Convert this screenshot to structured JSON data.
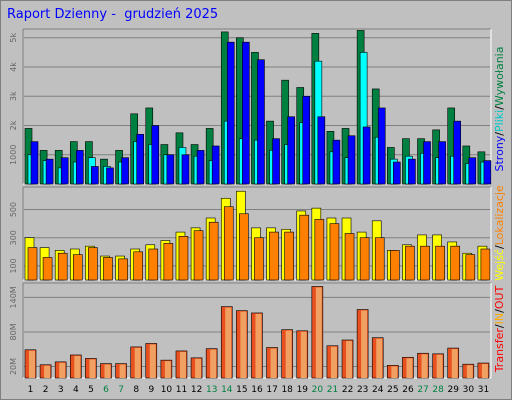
{
  "title": "Raport Dzienny -  grudzień 2025",
  "colors": {
    "hits": "#008040",
    "files": "#00ffff",
    "pages": "#0000ff",
    "visits": "#ffff00",
    "sites": "#ff8000",
    "kbytes": "#ff0000",
    "grid": "#808080",
    "panel_bg": "#c0c0c0",
    "weekday": "#000000",
    "weekend": "#008040"
  },
  "side_labels": {
    "top": [
      {
        "text": "Wywołania",
        "color": "#008040"
      },
      {
        "text": "/",
        "color": "#000000"
      },
      {
        "text": "Pliki",
        "color": "#00c8c8"
      },
      {
        "text": "/",
        "color": "#000000"
      },
      {
        "text": "Strony",
        "color": "#0000ff"
      }
    ],
    "mid": [
      {
        "text": "Lokalizacje",
        "color": "#ff8000"
      },
      {
        "text": "/",
        "color": "#000000"
      },
      {
        "text": "Wejść",
        "color": "#ffff00"
      }
    ],
    "bottom": [
      {
        "text": "OUT",
        "color": "#ff0000"
      },
      {
        "text": "/",
        "color": "#000000"
      },
      {
        "text": "IN",
        "color": "#ffaa00"
      },
      {
        "text": "/",
        "color": "#000000"
      },
      {
        "text": "Transfer",
        "color": "#ff0000"
      }
    ]
  },
  "chart_data": [
    {
      "type": "bar",
      "title": "",
      "categories": [
        "1",
        "2",
        "3",
        "4",
        "5",
        "6",
        "7",
        "8",
        "9",
        "10",
        "11",
        "12",
        "13",
        "14",
        "15",
        "16",
        "17",
        "18",
        "19",
        "20",
        "21",
        "22",
        "23",
        "24",
        "25",
        "26",
        "27",
        "28",
        "29",
        "30",
        "31"
      ],
      "weekend_days": [
        "6",
        "7",
        "13",
        "14",
        "20",
        "21",
        "27",
        "28"
      ],
      "yticks": [
        "1000",
        "2k",
        "3k",
        "4k",
        "5k"
      ],
      "ylim": [
        0,
        5300
      ],
      "series": [
        {
          "name": "Wywołania",
          "values": [
            1900,
            1150,
            1150,
            1450,
            1450,
            850,
            1150,
            2400,
            2600,
            1350,
            1750,
            1350,
            1900,
            5200,
            5000,
            4500,
            2150,
            3550,
            3300,
            5150,
            1800,
            1900,
            5250,
            3250,
            1250,
            1550,
            1550,
            1850,
            2600,
            1300,
            1100
          ]
        },
        {
          "name": "Pliki",
          "values": [
            1000,
            800,
            550,
            750,
            900,
            600,
            750,
            1450,
            1350,
            1000,
            1250,
            950,
            800,
            2150,
            1550,
            1500,
            1150,
            1350,
            2100,
            4200,
            1100,
            900,
            4500,
            1600,
            850,
            950,
            1050,
            900,
            950,
            700,
            750
          ]
        },
        {
          "name": "Strony",
          "values": [
            1450,
            850,
            900,
            1150,
            600,
            550,
            900,
            1700,
            2000,
            1000,
            1000,
            1150,
            1300,
            4850,
            4850,
            4250,
            1550,
            2300,
            3000,
            2300,
            1500,
            1650,
            1950,
            2600,
            750,
            850,
            1450,
            1450,
            2150,
            900,
            800
          ]
        }
      ]
    },
    {
      "type": "bar",
      "title": "",
      "categories": [
        "1",
        "2",
        "3",
        "4",
        "5",
        "6",
        "7",
        "8",
        "9",
        "10",
        "11",
        "12",
        "13",
        "14",
        "15",
        "16",
        "17",
        "18",
        "19",
        "20",
        "21",
        "22",
        "23",
        "24",
        "25",
        "26",
        "27",
        "28",
        "29",
        "30",
        "31"
      ],
      "yticks": [
        "100",
        "300",
        "500"
      ],
      "ylim": [
        0,
        660
      ],
      "series": [
        {
          "name": "Wejść",
          "values": [
            300,
            230,
            210,
            220,
            240,
            170,
            170,
            220,
            250,
            280,
            340,
            370,
            440,
            580,
            630,
            370,
            370,
            360,
            490,
            510,
            440,
            440,
            340,
            420,
            210,
            250,
            320,
            320,
            270,
            190,
            240
          ]
        },
        {
          "name": "Lokalizacje",
          "values": [
            230,
            160,
            190,
            180,
            230,
            160,
            150,
            200,
            220,
            260,
            310,
            350,
            410,
            520,
            470,
            300,
            340,
            340,
            460,
            430,
            400,
            330,
            300,
            300,
            210,
            240,
            240,
            240,
            240,
            180,
            220
          ]
        }
      ]
    },
    {
      "type": "bar",
      "title": "",
      "categories": [
        "1",
        "2",
        "3",
        "4",
        "5",
        "6",
        "7",
        "8",
        "9",
        "10",
        "11",
        "12",
        "13",
        "14",
        "15",
        "16",
        "17",
        "18",
        "19",
        "20",
        "21",
        "22",
        "23",
        "24",
        "25",
        "26",
        "27",
        "28",
        "29",
        "30",
        "31"
      ],
      "yticks": [
        "20M",
        "80M",
        "140M"
      ],
      "ylim": [
        0,
        165
      ],
      "series": [
        {
          "name": "Transfer",
          "values": [
            49,
            23,
            28,
            40,
            34,
            25,
            25,
            54,
            60,
            31,
            47,
            35,
            51,
            124,
            117,
            113,
            53,
            84,
            82,
            159,
            56,
            66,
            119,
            70,
            22,
            36,
            43,
            42,
            52,
            24,
            26
          ]
        }
      ]
    }
  ]
}
